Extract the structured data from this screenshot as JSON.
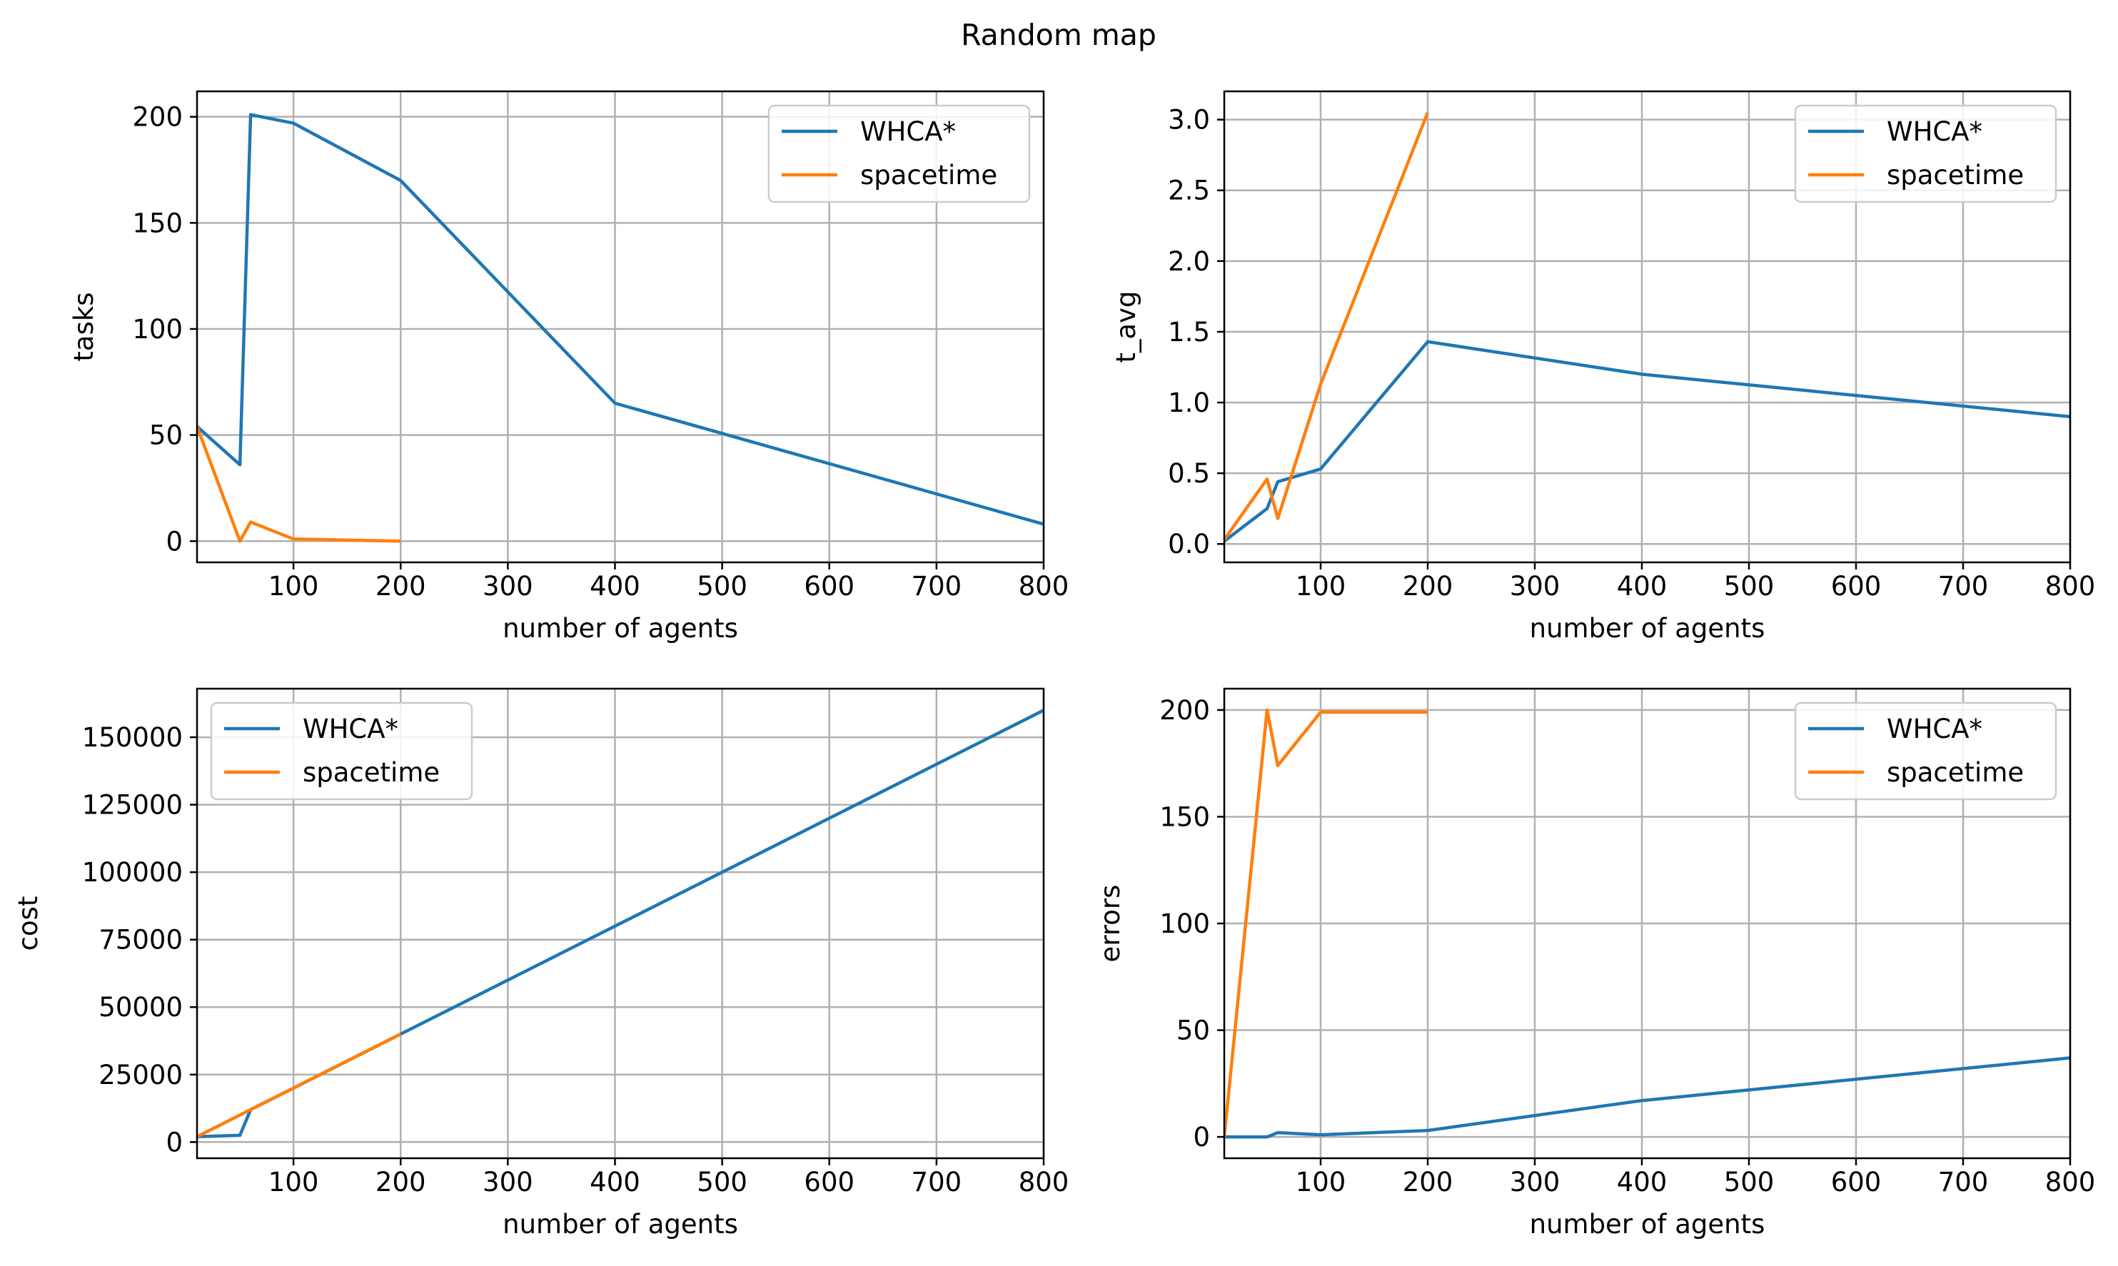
{
  "title": "Random map",
  "colors": {
    "WHCA*": "#1f77b4",
    "spacetime": "#ff7f0e",
    "grid": "#b0b0b0"
  },
  "chart_data": [
    {
      "type": "line",
      "xlabel": "number of agents",
      "ylabel": "tasks",
      "xlim": [
        10,
        800
      ],
      "ylim": [
        -10,
        212
      ],
      "xticks": [
        100,
        200,
        300,
        400,
        500,
        600,
        700,
        800
      ],
      "yticks": [
        0,
        50,
        100,
        150,
        200
      ],
      "grid": true,
      "legend_position": "top-right",
      "series": [
        {
          "name": "WHCA*",
          "x": [
            10,
            50,
            60,
            100,
            200,
            400,
            800
          ],
          "y": [
            54,
            36,
            201,
            197,
            170,
            65,
            8
          ]
        },
        {
          "name": "spacetime",
          "x": [
            10,
            50,
            60,
            100,
            200
          ],
          "y": [
            54,
            0,
            9,
            1,
            0
          ]
        }
      ]
    },
    {
      "type": "line",
      "xlabel": "number of agents",
      "ylabel": "t_avg",
      "xlim": [
        10,
        800
      ],
      "ylim": [
        -0.13,
        3.2
      ],
      "xticks": [
        100,
        200,
        300,
        400,
        500,
        600,
        700,
        800
      ],
      "yticks": [
        0.0,
        0.5,
        1.0,
        1.5,
        2.0,
        2.5,
        3.0
      ],
      "ytick_labels": [
        "0.0",
        "0.5",
        "1.0",
        "1.5",
        "2.0",
        "2.5",
        "3.0"
      ],
      "grid": true,
      "legend_position": "top-right",
      "series": [
        {
          "name": "WHCA*",
          "x": [
            10,
            50,
            60,
            100,
            200,
            400,
            800
          ],
          "y": [
            0.02,
            0.25,
            0.44,
            0.53,
            1.43,
            1.2,
            0.9
          ]
        },
        {
          "name": "spacetime",
          "x": [
            10,
            50,
            60,
            100,
            200
          ],
          "y": [
            0.03,
            0.46,
            0.18,
            1.13,
            3.05
          ]
        }
      ]
    },
    {
      "type": "line",
      "xlabel": "number of agents",
      "ylabel": "cost",
      "xlim": [
        10,
        800
      ],
      "ylim": [
        -6000,
        168000
      ],
      "xticks": [
        100,
        200,
        300,
        400,
        500,
        600,
        700,
        800
      ],
      "yticks": [
        0,
        25000,
        50000,
        75000,
        100000,
        125000,
        150000
      ],
      "grid": true,
      "legend_position": "top-left",
      "series": [
        {
          "name": "WHCA*",
          "x": [
            10,
            50,
            60,
            100,
            200,
            400,
            800
          ],
          "y": [
            2000,
            2500,
            12000,
            20000,
            40000,
            80000,
            160000
          ]
        },
        {
          "name": "spacetime",
          "x": [
            10,
            50,
            60,
            100,
            200
          ],
          "y": [
            2000,
            10000,
            12000,
            20000,
            40000
          ]
        }
      ]
    },
    {
      "type": "line",
      "xlabel": "number of agents",
      "ylabel": "errors",
      "xlim": [
        10,
        800
      ],
      "ylim": [
        -10,
        210
      ],
      "xticks": [
        100,
        200,
        300,
        400,
        500,
        600,
        700,
        800
      ],
      "yticks": [
        0,
        50,
        100,
        150,
        200
      ],
      "grid": true,
      "legend_position": "top-right",
      "series": [
        {
          "name": "WHCA*",
          "x": [
            10,
            50,
            60,
            100,
            200,
            400,
            800
          ],
          "y": [
            0,
            0,
            2,
            1,
            3,
            17,
            37
          ]
        },
        {
          "name": "spacetime",
          "x": [
            10,
            50,
            60,
            100,
            200
          ],
          "y": [
            0,
            200,
            174,
            199,
            199
          ]
        }
      ]
    }
  ]
}
